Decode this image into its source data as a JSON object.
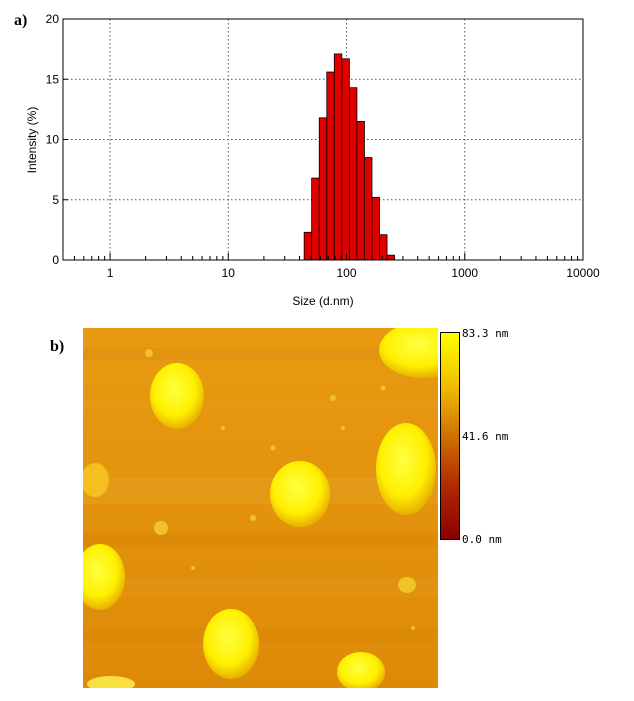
{
  "panel_a_label": "a)",
  "panel_b_label": "b)",
  "chart_data": {
    "type": "bar",
    "title": "",
    "xlabel": "Size (d.nm)",
    "ylabel": "Intensity (%)",
    "xscale": "log",
    "xlim": [
      0.4,
      10000
    ],
    "ylim": [
      0,
      20
    ],
    "xticks": [
      1,
      10,
      100,
      1000,
      10000
    ],
    "xtick_labels": [
      "1",
      "10",
      "100",
      "1000",
      "10000"
    ],
    "yticks": [
      0,
      5,
      10,
      15,
      20
    ],
    "ytick_labels": [
      "0",
      "5",
      "10",
      "15",
      "20"
    ],
    "grid": true,
    "bar_color": "#e00000",
    "bins_nm": [
      43.8,
      50.7,
      58.8,
      68.1,
      78.8,
      91.3,
      105.7,
      122.4,
      141.8,
      164.2,
      190.1,
      220.2,
      255.0
    ],
    "values": [
      2.3,
      6.8,
      11.8,
      15.6,
      17.1,
      16.7,
      14.3,
      11.5,
      8.5,
      5.2,
      2.1,
      0.4
    ]
  },
  "afm_scale": {
    "max_label": "83.3 nm",
    "mid_label": "41.6 nm",
    "min_label": "0.0 nm",
    "colors": [
      "#ffff00",
      "#f0c000",
      "#d07000",
      "#b02800",
      "#8a0000"
    ]
  }
}
